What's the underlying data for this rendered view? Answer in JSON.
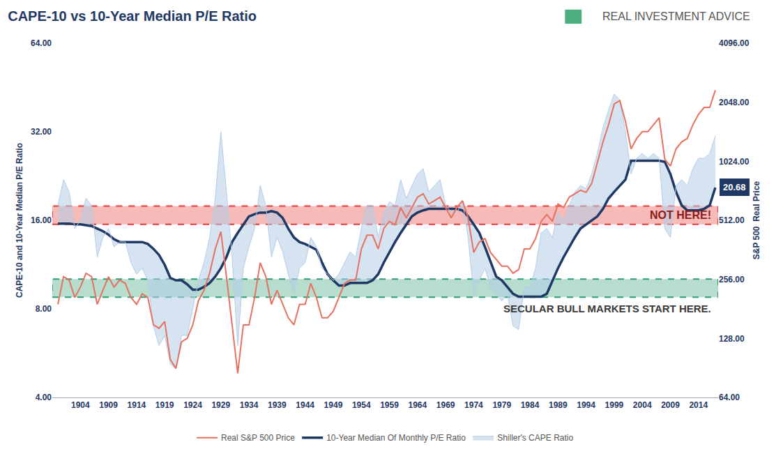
{
  "chart_data": {
    "type": "line",
    "title": "CAPE-10 vs 10-Year Median P/E Ratio",
    "source": "REAL INVESTMENT ADVICE",
    "ylabel": "CAPE-10 and 10-Year Median P/E Ratio",
    "y2label": "S&P 500  Real Price",
    "log": "y",
    "grid": false,
    "legend": "bottom",
    "xlim": [
      1899,
      2017.5
    ],
    "xticks": [
      1904,
      1909,
      1914,
      1919,
      1924,
      1929,
      1934,
      1939,
      1944,
      1949,
      1954,
      1959,
      1964,
      1969,
      1974,
      1979,
      1984,
      1989,
      1994,
      1999,
      2004,
      2009,
      2014
    ],
    "ylim": [
      4,
      64
    ],
    "yticks": [
      {
        "value": 4,
        "label": "4.00"
      },
      {
        "value": 8,
        "label": "8.00"
      },
      {
        "value": 16,
        "label": "16.00"
      },
      {
        "value": 32,
        "label": "32.00"
      },
      {
        "value": 64,
        "label": "64.00"
      }
    ],
    "y2lim": [
      64,
      4096
    ],
    "y2ticks": [
      {
        "value": 64,
        "label": "64.00"
      },
      {
        "value": 128,
        "label": "128.00"
      },
      {
        "value": 256,
        "label": "256.00"
      },
      {
        "value": 512,
        "label": "512.00"
      },
      {
        "value": 1024,
        "label": "1024.00"
      },
      {
        "value": 2048,
        "label": "2048.00"
      },
      {
        "value": 4096,
        "label": "4096.00"
      }
    ],
    "x": [
      1900,
      1901,
      1902,
      1903,
      1904,
      1905,
      1906,
      1907,
      1908,
      1909,
      1910,
      1911,
      1912,
      1913,
      1914,
      1915,
      1916,
      1917,
      1918,
      1919,
      1920,
      1921,
      1922,
      1923,
      1924,
      1925,
      1926,
      1927,
      1928,
      1929,
      1930,
      1931,
      1932,
      1933,
      1934,
      1935,
      1936,
      1937,
      1938,
      1939,
      1940,
      1941,
      1942,
      1943,
      1944,
      1945,
      1946,
      1947,
      1948,
      1949,
      1950,
      1951,
      1952,
      1953,
      1954,
      1955,
      1956,
      1957,
      1958,
      1959,
      1960,
      1961,
      1962,
      1963,
      1964,
      1965,
      1966,
      1967,
      1968,
      1969,
      1970,
      1971,
      1972,
      1973,
      1974,
      1975,
      1976,
      1977,
      1978,
      1979,
      1980,
      1981,
      1982,
      1983,
      1984,
      1985,
      1986,
      1987,
      1988,
      1989,
      1990,
      1991,
      1992,
      1993,
      1994,
      1995,
      1996,
      1997,
      1998,
      1999,
      2000,
      2001,
      2002,
      2003,
      2004,
      2005,
      2006,
      2007,
      2008,
      2009,
      2010,
      2011,
      2012,
      2013,
      2014,
      2015,
      2016,
      2017
    ],
    "series": [
      {
        "name": "Shiller's CAPE Ratio",
        "type": "area",
        "color": "#b4cde8",
        "values": [
          18,
          22,
          20,
          15,
          16,
          19,
          18,
          12,
          14,
          15,
          13,
          13.5,
          13.5,
          11.5,
          10.5,
          11,
          10,
          7,
          6,
          6.5,
          5.2,
          5,
          6.5,
          6.5,
          8,
          10,
          11.5,
          14,
          19,
          32,
          20,
          12,
          6,
          11,
          13,
          15,
          21,
          18,
          12,
          14,
          12.5,
          10.5,
          9,
          11,
          11.5,
          14,
          13,
          11,
          10.5,
          10,
          10.5,
          11.5,
          12.5,
          12,
          15,
          18,
          18,
          14,
          17,
          18.5,
          18,
          22,
          19,
          21,
          23,
          24,
          20,
          21,
          22,
          18,
          17,
          17,
          18.5,
          14,
          9,
          10,
          11,
          9.5,
          9,
          8.5,
          9,
          7,
          6.8,
          9.5,
          9.5,
          11,
          14.5,
          15,
          14,
          17,
          16,
          18,
          20,
          21,
          20.5,
          23,
          27,
          33,
          38,
          43,
          41,
          32,
          23,
          26,
          27,
          26,
          27,
          26,
          15,
          14,
          21,
          22,
          21,
          24,
          26,
          26,
          27,
          31
        ]
      },
      {
        "name": "10-Year Median Of Monthly P/E Ratio",
        "type": "line",
        "color": "#1f3864",
        "values": [
          15.6,
          15.6,
          15.6,
          15.5,
          15.5,
          15.4,
          15.3,
          15.0,
          14.7,
          14.3,
          13.8,
          13.5,
          13.5,
          13.5,
          13.5,
          13.5,
          13.3,
          12.8,
          12.2,
          11.3,
          10.2,
          10.0,
          10.0,
          9.7,
          9.3,
          9.3,
          9.5,
          9.8,
          10.3,
          11.0,
          12.0,
          13.5,
          14.5,
          15.5,
          16.5,
          16.8,
          17.0,
          17.0,
          17.2,
          17.0,
          16.3,
          15.0,
          14.0,
          13.5,
          13.3,
          13.0,
          12.7,
          11.5,
          10.5,
          10.0,
          9.6,
          9.6,
          9.8,
          9.8,
          9.8,
          9.8,
          10.0,
          10.5,
          11.5,
          12.5,
          13.5,
          14.5,
          15.5,
          16.5,
          17.0,
          17.3,
          17.5,
          17.5,
          17.5,
          17.5,
          17.5,
          17.5,
          17.3,
          16.5,
          15.5,
          14.5,
          13.0,
          11.5,
          10.3,
          10.0,
          9.5,
          9.0,
          8.8,
          8.8,
          8.8,
          8.8,
          8.8,
          9.0,
          10.0,
          11.0,
          12.0,
          13.0,
          14.0,
          15.0,
          15.5,
          16.0,
          16.5,
          17.5,
          19.0,
          20.0,
          21.0,
          22.0,
          25.5,
          25.5,
          25.5,
          25.5,
          25.5,
          25.5,
          25.3,
          23.0,
          20.0,
          18.0,
          17.3,
          17.3,
          17.3,
          17.5,
          18.0,
          20.68
        ]
      },
      {
        "name": "Real S&P 500 Price",
        "type": "line",
        "color": "#e8705f",
        "axis": "y2",
        "values": [
          191,
          264,
          254,
          207,
          234,
          275,
          264,
          191,
          225,
          264,
          234,
          254,
          244,
          207,
          191,
          216,
          207,
          150,
          144,
          156,
          100,
          90,
          123,
          128,
          150,
          199,
          225,
          275,
          366,
          448,
          264,
          150,
          85,
          150,
          150,
          207,
          311,
          264,
          191,
          225,
          191,
          163,
          150,
          191,
          191,
          244,
          207,
          163,
          163,
          176,
          207,
          244,
          254,
          254,
          366,
          430,
          430,
          366,
          466,
          506,
          486,
          595,
          527,
          595,
          672,
          700,
          620,
          645,
          672,
          595,
          527,
          595,
          645,
          527,
          351,
          397,
          413,
          351,
          324,
          299,
          299,
          275,
          287,
          366,
          366,
          413,
          506,
          548,
          506,
          620,
          595,
          672,
          700,
          729,
          711,
          790,
          1008,
          1285,
          1574,
          2006,
          2090,
          1639,
          1185,
          1338,
          1451,
          1451,
          1574,
          1707,
          1049,
          968,
          1185,
          1285,
          1338,
          1574,
          1777,
          1927,
          1927,
          2360
        ]
      }
    ],
    "bands": [
      {
        "label": "NOT HERE!",
        "y0": 15.5,
        "y1": 17.9,
        "color": "#e53935"
      },
      {
        "label": "SECULAR BULL MARKETS START HERE.",
        "y0": 8.76,
        "y1": 10.1,
        "color": "#2e9e73"
      }
    ],
    "annotations": [
      {
        "text": "20.68",
        "x": 2017,
        "y": 20.68
      }
    ]
  }
}
